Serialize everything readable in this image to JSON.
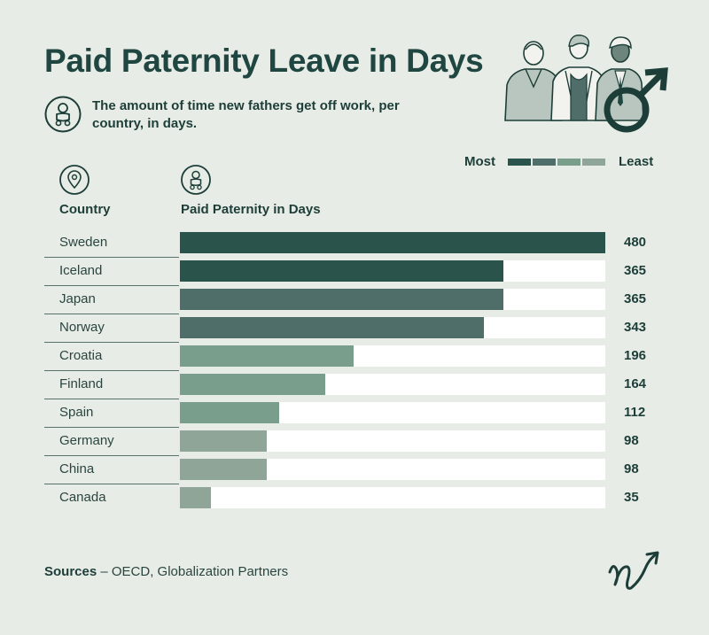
{
  "header": {
    "title": "Paid Paternity Leave in Days",
    "subtitle": "The amount of time new fathers get off work, per country, in days."
  },
  "legend": {
    "most_label": "Most",
    "least_label": "Least",
    "colors": [
      "#2a534c",
      "#4f6e69",
      "#7a9e8c",
      "#8fa597"
    ]
  },
  "columns": {
    "country_header": "Country",
    "value_header": "Paid Paternity in Days"
  },
  "icons": {
    "subtitle_icon": "baby-icon",
    "country_icon": "location-pin-icon",
    "value_icon": "baby-icon",
    "illustration": "three-men-illustration",
    "male_symbol": "male-symbol-icon",
    "logo": "signature-logo"
  },
  "chart_data": {
    "type": "bar",
    "orientation": "horizontal",
    "categories": [
      "Sweden",
      "Iceland",
      "Japan",
      "Norway",
      "Croatia",
      "Finland",
      "Spain",
      "Germany",
      "China",
      "Canada"
    ],
    "values": [
      480,
      365,
      365,
      343,
      196,
      164,
      112,
      98,
      98,
      35
    ],
    "bar_colors": [
      "#2a534c",
      "#2a534c",
      "#4f6e69",
      "#4f6e69",
      "#7a9e8c",
      "#7a9e8c",
      "#7a9e8c",
      "#8fa597",
      "#8fa597",
      "#8fa597"
    ],
    "xlim": [
      0,
      480
    ],
    "title": "Paid Paternity Leave in Days",
    "xlabel": "Paid Paternity in Days",
    "ylabel": "Country"
  },
  "footer": {
    "sources_label": "Sources",
    "sources_text": " – OECD, Globalization Partners"
  }
}
